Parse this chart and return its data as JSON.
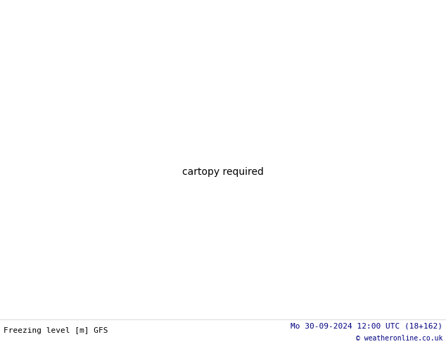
{
  "title_left": "Freezing level [m] GFS",
  "title_right": "Mo 30-09-2024 12:00 UTC (18+162)",
  "copyright": "© weatheronline.co.uk",
  "bg_land_color": "#c8f0a0",
  "bg_sea_color": "#c8d4e0",
  "border_color_dark": "#202020",
  "border_color_gray": "#888888",
  "contour_color_red": "#cc0000",
  "contour_color_darkred": "#880000",
  "contour_color_orange": "#e87800",
  "contour_color_green_light": "#44bb44",
  "contour_color_green_dark": "#006600",
  "contour_color_blue": "#4488ff",
  "label_fontsize": 7,
  "footer_fontsize": 8,
  "lon_min": -5.5,
  "lon_max": 30.0,
  "lat_min": 34.0,
  "lat_max": 49.5
}
